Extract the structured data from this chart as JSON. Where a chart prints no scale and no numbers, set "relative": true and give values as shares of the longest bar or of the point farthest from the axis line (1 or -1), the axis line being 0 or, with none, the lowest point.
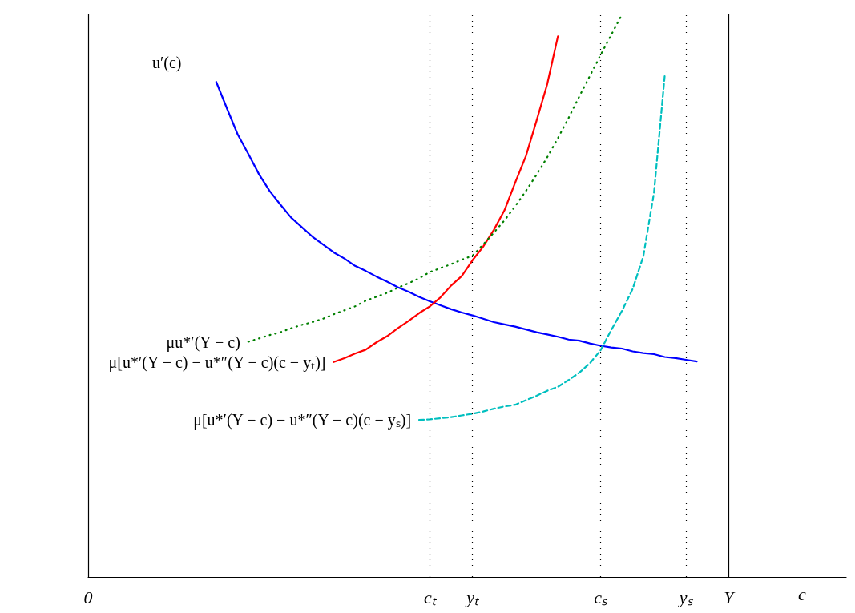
{
  "chart_data": {
    "type": "line",
    "relative": true,
    "xlabel": "c",
    "legend": false,
    "grid": false,
    "marker": "none",
    "categories": [
      "0",
      null,
      null,
      null,
      null,
      null,
      null,
      null,
      null,
      null,
      null,
      null,
      null,
      null,
      null,
      null,
      null,
      null,
      null,
      null,
      null,
      null,
      null,
      null,
      null,
      null,
      null,
      null,
      null,
      null,
      null,
      null,
      "cₜ",
      null,
      null,
      null,
      "yₜ",
      null,
      null,
      null,
      null,
      null,
      null,
      null,
      null,
      null,
      null,
      null,
      "cₛ",
      null,
      null,
      null,
      null,
      null,
      null,
      null,
      "yₛ",
      null,
      null,
      null,
      "Y",
      null,
      null,
      null,
      null,
      null,
      null,
      null,
      null,
      null,
      null,
      null
    ],
    "ref_lines": [
      {
        "axis": "x",
        "value": "cₜ",
        "line_style": "dotted",
        "color": "#000000"
      },
      {
        "axis": "x",
        "value": "yₜ",
        "line_style": "dotted",
        "color": "#000000"
      },
      {
        "axis": "x",
        "value": "cₛ",
        "line_style": "dotted",
        "color": "#000000"
      },
      {
        "axis": "x",
        "value": "yₛ",
        "line_style": "dotted",
        "color": "#000000"
      },
      {
        "axis": "x",
        "value": "Y",
        "line_style": "solid",
        "color": "#000000"
      }
    ],
    "series": [
      {
        "name": "u′(c)",
        "color": "#0000ff",
        "line_style": "solid",
        "values": [
          null,
          null,
          null,
          null,
          null,
          null,
          null,
          null,
          null,
          null,
          null,
          null,
          0.88,
          0.833,
          0.787,
          0.752,
          0.716,
          0.686,
          0.662,
          0.639,
          0.622,
          0.605,
          0.591,
          0.577,
          0.566,
          0.553,
          0.544,
          0.534,
          0.525,
          0.515,
          0.507,
          0.498,
          0.49,
          0.483,
          0.476,
          0.47,
          0.465,
          0.459,
          0.453,
          0.449,
          0.445,
          0.44,
          0.435,
          0.431,
          0.427,
          0.422,
          0.42,
          0.415,
          0.411,
          0.408,
          0.406,
          0.401,
          0.398,
          0.396,
          0.391,
          0.389,
          0.386,
          0.383,
          null,
          null,
          null,
          null,
          null,
          null,
          null,
          null,
          null,
          null,
          null,
          null,
          null,
          null
        ]
      },
      {
        "name": "μ[u*′(Y − c) − u*″(Y − c)(c − yₜ)]",
        "color": "#ff0000",
        "line_style": "solid",
        "values": [
          null,
          null,
          null,
          null,
          null,
          null,
          null,
          null,
          null,
          null,
          null,
          null,
          null,
          null,
          null,
          null,
          null,
          null,
          null,
          null,
          null,
          null,
          null,
          0.382,
          0.389,
          0.397,
          0.404,
          0.417,
          0.428,
          0.442,
          0.455,
          0.469,
          0.481,
          0.497,
          0.518,
          0.535,
          0.563,
          0.587,
          0.617,
          0.652,
          0.701,
          0.748,
          0.811,
          0.876,
          0.961,
          null,
          null,
          null,
          null,
          null,
          null,
          null,
          null,
          null,
          null,
          null,
          null,
          null,
          null,
          null,
          null,
          null,
          null,
          null,
          null,
          null,
          null,
          null,
          null,
          null,
          null,
          null
        ]
      },
      {
        "name": "μu*′(Y − c)",
        "color": "#008000",
        "line_style": "dotted",
        "values": [
          null,
          null,
          null,
          null,
          null,
          null,
          null,
          null,
          null,
          null,
          null,
          null,
          null,
          null,
          null,
          0.418,
          0.424,
          0.43,
          0.435,
          0.442,
          0.448,
          0.453,
          0.459,
          0.467,
          0.474,
          0.481,
          0.491,
          0.498,
          0.505,
          0.514,
          0.522,
          0.531,
          0.542,
          0.549,
          0.556,
          0.564,
          0.571,
          0.591,
          0.612,
          0.634,
          0.659,
          0.686,
          0.715,
          0.746,
          0.78,
          0.816,
          0.854,
          0.891,
          0.928,
          0.964,
          1,
          null,
          null,
          null,
          null,
          null,
          null,
          null,
          null,
          null,
          null,
          null,
          null,
          null,
          null,
          null,
          null,
          null,
          null,
          null,
          null,
          null
        ]
      },
      {
        "name": "μ[u*′(Y − c) − u*″(Y − c)(c − yₛ)]",
        "color": "#00bfbf",
        "line_style": "dashed",
        "values": [
          null,
          null,
          null,
          null,
          null,
          null,
          null,
          null,
          null,
          null,
          null,
          null,
          null,
          null,
          null,
          null,
          null,
          null,
          null,
          null,
          null,
          null,
          null,
          null,
          null,
          null,
          null,
          null,
          null,
          null,
          null,
          0.279,
          0.28,
          0.282,
          0.284,
          0.287,
          0.29,
          0.294,
          0.299,
          0.303,
          0.306,
          0.314,
          0.322,
          0.331,
          0.338,
          0.35,
          0.363,
          0.38,
          0.403,
          0.439,
          0.473,
          0.512,
          0.57,
          0.683,
          0.89,
          null,
          null,
          null,
          null,
          null,
          null,
          null,
          null,
          null,
          null,
          null,
          null,
          null,
          null,
          null,
          null,
          null
        ]
      }
    ]
  }
}
